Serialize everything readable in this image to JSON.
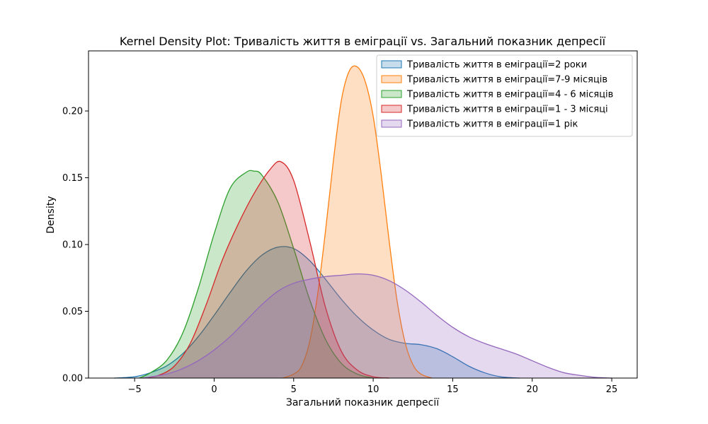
{
  "chart_data": {
    "type": "area",
    "title": "Kernel Density Plot: Тривалість життя в еміграції vs. Загальний показник депресії",
    "xlabel": "Загальний показник депресії",
    "ylabel": "Density",
    "xlim": [
      -7.9,
      26.6
    ],
    "ylim": [
      0.0,
      0.245
    ],
    "xticks": [
      -5,
      0,
      5,
      10,
      15,
      20,
      25
    ],
    "xtick_labels": [
      "−5",
      "0",
      "5",
      "10",
      "15",
      "20",
      "25"
    ],
    "yticks": [
      0.0,
      0.05,
      0.1,
      0.15,
      0.2
    ],
    "ytick_labels": [
      "0.00",
      "0.05",
      "0.10",
      "0.15",
      "0.20"
    ],
    "grid": false,
    "legend_position": "top-right",
    "series": [
      {
        "name": "Тривалість життя в еміграції=2 роки",
        "color": "#1f77b4",
        "x": [
          -6.3,
          -5,
          -4,
          -3,
          -2,
          -1,
          0,
          1,
          2,
          3,
          4,
          5,
          6,
          7,
          8,
          9,
          10,
          11,
          12,
          13,
          14,
          15,
          16,
          17,
          18,
          19.2
        ],
        "y": [
          0.0,
          0.001,
          0.004,
          0.009,
          0.018,
          0.031,
          0.047,
          0.064,
          0.08,
          0.092,
          0.098,
          0.097,
          0.088,
          0.074,
          0.059,
          0.046,
          0.036,
          0.029,
          0.026,
          0.025,
          0.022,
          0.016,
          0.009,
          0.004,
          0.001,
          0.0
        ]
      },
      {
        "name": "Тривалість життя в еміграції=7-9 місяців",
        "color": "#ff7f0e",
        "x": [
          4.3,
          5,
          5.5,
          6,
          6.5,
          7,
          7.5,
          8,
          8.5,
          9,
          9.5,
          10,
          10.5,
          11,
          11.5,
          12,
          12.5,
          13,
          13.7
        ],
        "y": [
          0.0,
          0.003,
          0.009,
          0.027,
          0.062,
          0.11,
          0.163,
          0.208,
          0.23,
          0.233,
          0.222,
          0.196,
          0.153,
          0.103,
          0.058,
          0.027,
          0.01,
          0.003,
          0.0
        ]
      },
      {
        "name": "Тривалість життя в еміграції=4 - 6 місяців",
        "color": "#2ca02c",
        "x": [
          -4.7,
          -4,
          -3,
          -2,
          -1,
          0,
          1,
          2,
          2.5,
          3,
          4,
          5,
          6,
          7,
          8,
          9,
          10
        ],
        "y": [
          0.0,
          0.004,
          0.013,
          0.033,
          0.067,
          0.108,
          0.142,
          0.154,
          0.155,
          0.152,
          0.132,
          0.097,
          0.059,
          0.029,
          0.011,
          0.003,
          0.0
        ]
      },
      {
        "name": "Тривалість життя в еміграції=1 - 3 місяці",
        "color": "#d62728",
        "x": [
          -4.5,
          -3.5,
          -2.5,
          -1.5,
          -0.5,
          0.5,
          1.5,
          2.5,
          3.5,
          4.2,
          5,
          6,
          7,
          8,
          9,
          10,
          11
        ],
        "y": [
          0.0,
          0.002,
          0.009,
          0.026,
          0.055,
          0.088,
          0.115,
          0.138,
          0.156,
          0.162,
          0.148,
          0.103,
          0.053,
          0.02,
          0.006,
          0.001,
          0.0
        ]
      },
      {
        "name": "Тривалість життя в еміграції=1 рік",
        "color": "#9467bd",
        "x": [
          -4.5,
          -3,
          -2,
          -1,
          0,
          1,
          2,
          3,
          4,
          5,
          6,
          7,
          8,
          9,
          10,
          11,
          12,
          13,
          14,
          15,
          16,
          17,
          18,
          19,
          20,
          21,
          22,
          23,
          24,
          25
        ],
        "y": [
          0.0,
          0.003,
          0.007,
          0.013,
          0.021,
          0.031,
          0.043,
          0.055,
          0.065,
          0.071,
          0.074,
          0.076,
          0.077,
          0.078,
          0.077,
          0.073,
          0.066,
          0.057,
          0.047,
          0.038,
          0.031,
          0.026,
          0.022,
          0.018,
          0.013,
          0.008,
          0.004,
          0.002,
          0.0005,
          0.0
        ]
      }
    ]
  }
}
